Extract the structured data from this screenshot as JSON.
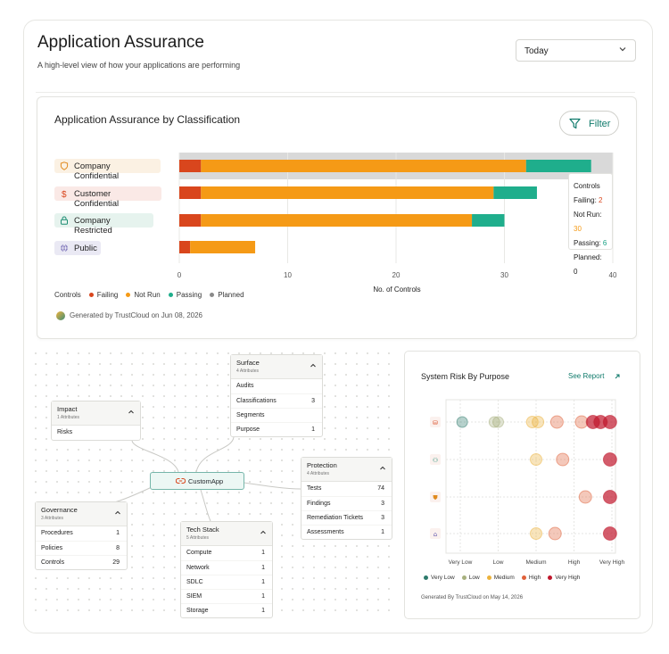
{
  "header": {
    "title": "Application Assurance",
    "subtitle": "A high-level view of how your applications are performing",
    "period": "Today"
  },
  "assurance": {
    "title": "Application Assurance by Classification",
    "filter_label": "Filter",
    "rows": [
      {
        "label": "Company Confidential",
        "icon": "shield-icon"
      },
      {
        "label": "Customer Confidential",
        "icon": "dollar-icon"
      },
      {
        "label": "Company Restricted",
        "icon": "lock-icon"
      },
      {
        "label": "Public",
        "icon": "globe-icon"
      }
    ],
    "tooltip": {
      "title": "Controls",
      "failing_label": "Failing:",
      "failing_value": "2",
      "notrun_label": "Not Run:",
      "notrun_value": "30",
      "passing_label": "Passing:",
      "passing_value": "6",
      "planned_label": "Planned:",
      "planned_value": "0"
    },
    "legend_title": "Controls",
    "legend": [
      {
        "label": "Failing",
        "color": "#d9461d"
      },
      {
        "label": "Not Run",
        "color": "#f59a16"
      },
      {
        "label": "Passing",
        "color": "#1fae8c"
      },
      {
        "label": "Planned",
        "color": "#8a8a8a"
      }
    ],
    "generated": "Generated by TrustCloud on Jun 08, 2026"
  },
  "chart_data": [
    {
      "type": "bar",
      "orientation": "horizontal",
      "stacked": true,
      "categories": [
        "Company Confidential",
        "Customer Confidential",
        "Company Restricted",
        "Public"
      ],
      "series": [
        {
          "name": "Failing",
          "values": [
            2,
            2,
            2,
            1
          ],
          "color": "#d9461d"
        },
        {
          "name": "Not Run",
          "values": [
            30,
            27,
            25,
            6
          ],
          "color": "#f59a16"
        },
        {
          "name": "Passing",
          "values": [
            6,
            4,
            3,
            0
          ],
          "color": "#1fae8c"
        },
        {
          "name": "Planned",
          "values": [
            0,
            0,
            0,
            0
          ],
          "color": "#8a8a8a"
        }
      ],
      "xlabel": "No. of Controls",
      "xticks": [
        0,
        10,
        20,
        30,
        40
      ],
      "xlim": [
        0,
        40
      ],
      "highlighted_category": "Company Confidential"
    },
    {
      "type": "scatter",
      "title": "System Risk By Purpose",
      "xticks": [
        "Very Low",
        "Low",
        "Medium",
        "High",
        "Very High"
      ],
      "rows": [
        "database-icon",
        "users-icon",
        "shield-icon",
        "lock-icon"
      ],
      "points": [
        {
          "row": 0,
          "x": 0.05,
          "level": "Very Low"
        },
        {
          "row": 0,
          "x": 0.9,
          "level": "Low"
        },
        {
          "row": 0,
          "x": 1.0,
          "level": "Low"
        },
        {
          "row": 0,
          "x": 1.9,
          "level": "Medium"
        },
        {
          "row": 0,
          "x": 2.05,
          "level": "Medium"
        },
        {
          "row": 0,
          "x": 2.55,
          "level": "High"
        },
        {
          "row": 0,
          "x": 3.2,
          "level": "High"
        },
        {
          "row": 0,
          "x": 3.5,
          "level": "Very High"
        },
        {
          "row": 0,
          "x": 3.7,
          "level": "Very High"
        },
        {
          "row": 0,
          "x": 3.95,
          "level": "Very High"
        },
        {
          "row": 1,
          "x": 2.0,
          "level": "Medium"
        },
        {
          "row": 1,
          "x": 2.7,
          "level": "High"
        },
        {
          "row": 1,
          "x": 3.95,
          "level": "Very High"
        },
        {
          "row": 2,
          "x": 3.3,
          "level": "High"
        },
        {
          "row": 2,
          "x": 3.95,
          "level": "Very High"
        },
        {
          "row": 3,
          "x": 2.0,
          "level": "Medium"
        },
        {
          "row": 3,
          "x": 2.5,
          "level": "High"
        },
        {
          "row": 3,
          "x": 3.95,
          "level": "Very High"
        }
      ],
      "legend": [
        {
          "label": "Very Low",
          "color": "#2d7a6c"
        },
        {
          "label": "Low",
          "color": "#a7b07e"
        },
        {
          "label": "Medium",
          "color": "#ecb23b"
        },
        {
          "label": "High",
          "color": "#e0613a"
        },
        {
          "label": "Very High",
          "color": "#c0172c"
        }
      ]
    }
  ],
  "graph": {
    "center": "CustomApp",
    "surface": {
      "title": "Surface",
      "sub": "4 Attributes",
      "rows": [
        {
          "label": "Audits",
          "count": ""
        },
        {
          "label": "Classifications",
          "count": "3"
        },
        {
          "label": "Segments",
          "count": ""
        },
        {
          "label": "Purpose",
          "count": "1"
        }
      ]
    },
    "impact": {
      "title": "Impact",
      "sub": "1 Attributes",
      "rows": [
        {
          "label": "Risks",
          "count": ""
        }
      ]
    },
    "protection": {
      "title": "Protection",
      "sub": "4 Attributes",
      "rows": [
        {
          "label": "Tests",
          "count": "74"
        },
        {
          "label": "Findings",
          "count": "3"
        },
        {
          "label": "Remediation Tickets",
          "count": "3"
        },
        {
          "label": "Assessments",
          "count": "1"
        }
      ]
    },
    "governance": {
      "title": "Governance",
      "sub": "3 Attributes",
      "rows": [
        {
          "label": "Procedures",
          "count": "1"
        },
        {
          "label": "Policies",
          "count": "8"
        },
        {
          "label": "Controls",
          "count": "29"
        }
      ]
    },
    "techstack": {
      "title": "Tech Stack",
      "sub": "5 Attributes",
      "rows": [
        {
          "label": "Compute",
          "count": "1"
        },
        {
          "label": "Network",
          "count": "1"
        },
        {
          "label": "SDLC",
          "count": "1"
        },
        {
          "label": "SIEM",
          "count": "1"
        },
        {
          "label": "Storage",
          "count": "1"
        }
      ]
    }
  },
  "risk": {
    "see_report": "See Report",
    "generated": "Generated By TrustCloud on May 14, 2026"
  }
}
